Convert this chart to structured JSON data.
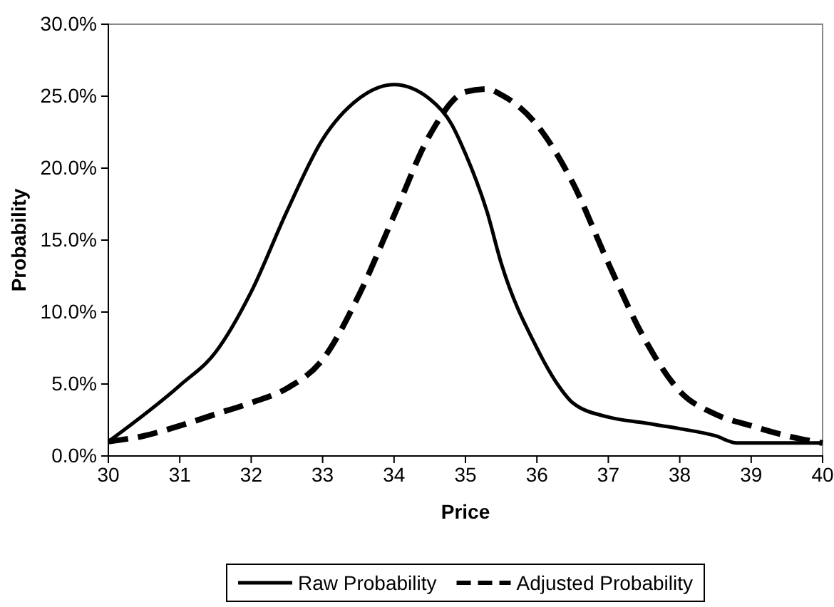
{
  "chart_data": {
    "type": "line",
    "xlabel": "Price",
    "ylabel": "Probability",
    "xlim": [
      30,
      40
    ],
    "xticks": [
      30,
      31,
      32,
      33,
      34,
      35,
      36,
      37,
      38,
      39,
      40
    ],
    "ylim": [
      0,
      30
    ],
    "yticks": [
      {
        "value": 0,
        "label": "0.0%"
      },
      {
        "value": 5,
        "label": "5.0%"
      },
      {
        "value": 10,
        "label": "10.0%"
      },
      {
        "value": 15,
        "label": "15.0%"
      },
      {
        "value": 20,
        "label": "20.0%"
      },
      {
        "value": 25,
        "label": "25.0%"
      },
      {
        "value": 30,
        "label": "30.0%"
      }
    ],
    "grid": false,
    "legend": "bottom",
    "marker": "none",
    "series": [
      {
        "name": "Raw Probability",
        "color": "#000000",
        "line_style": "solid",
        "x": [
          30,
          31,
          31.5,
          32,
          32.5,
          33,
          33.5,
          34,
          34.5,
          34.8,
          35,
          35.3,
          35.5,
          36,
          36.3,
          36.5,
          37,
          37.5,
          38,
          38.5,
          38.8,
          39,
          40
        ],
        "values": [
          1.0,
          4.9,
          7.2,
          11.4,
          17,
          22,
          24.8,
          25.8,
          24.8,
          23.1,
          21,
          17,
          13.4,
          7.5,
          4.9,
          3.7,
          2.7,
          2.3,
          1.9,
          1.4,
          0.9,
          0.9,
          0.9
        ]
      },
      {
        "name": "Adjusted Probability",
        "color": "#000000",
        "line_style": "dashed",
        "x": [
          30,
          30.5,
          31,
          31.5,
          32,
          32.5,
          33,
          33.5,
          34,
          34.5,
          35,
          35.3,
          35.5,
          36,
          36.5,
          37,
          37.5,
          38,
          38.5,
          39,
          39.5,
          40
        ],
        "values": [
          1.0,
          1.4,
          2.1,
          2.9,
          3.7,
          4.7,
          6.7,
          11.1,
          16.7,
          22.3,
          25.3,
          25.5,
          25.1,
          23,
          19,
          13.4,
          8.2,
          4.5,
          2.9,
          2.1,
          1.4,
          0.9
        ]
      }
    ]
  }
}
